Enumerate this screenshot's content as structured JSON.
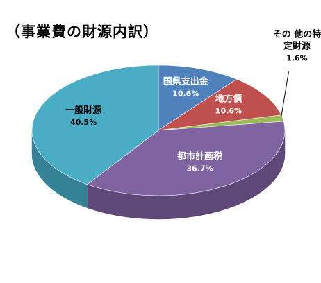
{
  "title": "（事業費の財源内訳）",
  "chart_data": {
    "type": "pie",
    "style": "3d",
    "title": "（事業費の財源内訳）",
    "unit": "%",
    "slices": [
      {
        "label": "国県支出金",
        "value": 10.6,
        "value_label": "10.6%",
        "color": "#4f81bd",
        "side": "#3b6290",
        "label_lines": [
          "国県支出金"
        ],
        "label_color": "#ffffff"
      },
      {
        "label": "地方債",
        "value": 10.6,
        "value_label": "10.6%",
        "color": "#c0504d",
        "side": "#8f3b39",
        "label_lines": [
          "地方債"
        ],
        "label_color": "#ffffff"
      },
      {
        "label": "その 他の特定財源",
        "value": 1.6,
        "value_label": "1.6%",
        "color": "#9bbb59",
        "side": "#738c42",
        "label_lines": [
          "その 他の特",
          "定財源"
        ],
        "label_color": "#000000"
      },
      {
        "label": "都市計画税",
        "value": 36.7,
        "value_label": "36.7%",
        "color": "#8064a2",
        "side": "#5d4878",
        "label_lines": [
          "都市計画税"
        ],
        "label_color": "#ffffff"
      },
      {
        "label": "一般財源",
        "value": 40.5,
        "value_label": "40.5%",
        "color": "#4bacc6",
        "side": "#358297",
        "label_lines": [
          "一般財源"
        ],
        "label_color": "#000000"
      }
    ],
    "legend": "none"
  }
}
